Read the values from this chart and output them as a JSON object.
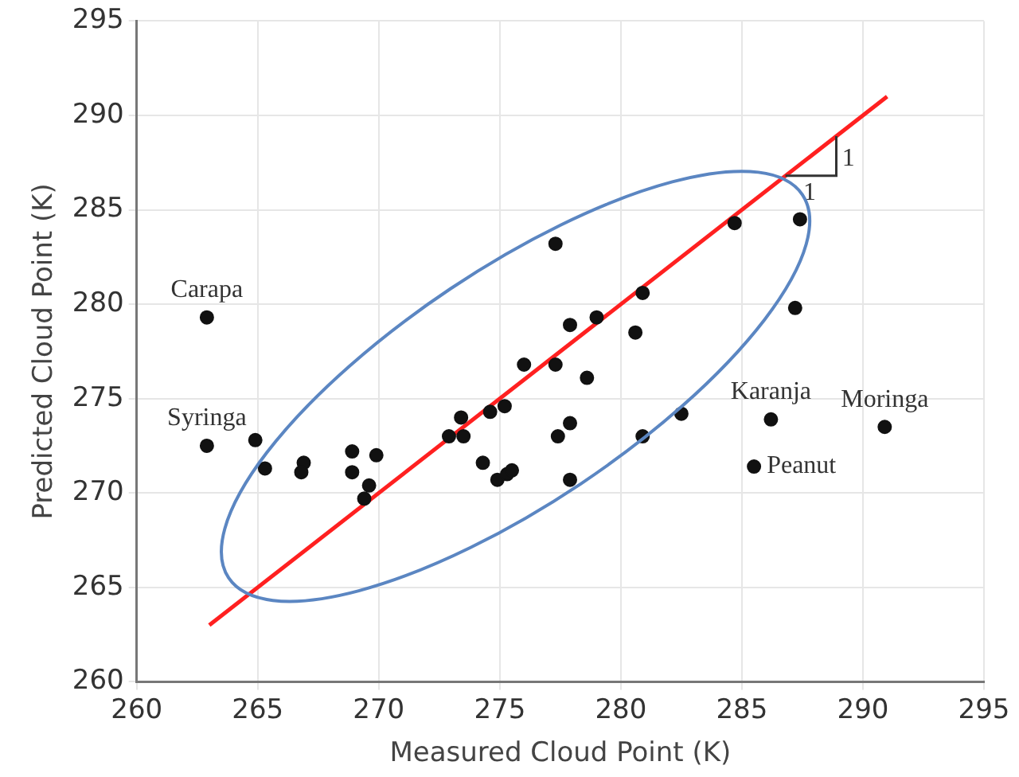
{
  "chart_data": {
    "type": "scatter",
    "xlabel": "Measured Cloud Point (K)",
    "ylabel": "Predicted Cloud Point (K)",
    "xlim": [
      260,
      295
    ],
    "xticks": [
      260,
      265,
      270,
      275,
      280,
      285,
      290,
      295
    ],
    "ylim": [
      260,
      295
    ],
    "yticks": [
      260,
      265,
      270,
      275,
      280,
      285,
      290,
      295
    ],
    "grid": true,
    "legend": false,
    "series": [
      {
        "marker": "circle",
        "color": "#111111",
        "x": [
          262.9,
          262.9,
          264.9,
          265.3,
          266.9,
          266.8,
          268.9,
          268.9,
          269.9,
          269.6,
          269.4,
          277.3,
          280.9,
          279.0,
          277.9,
          280.6,
          276.0,
          277.3,
          278.6,
          273.4,
          274.6,
          275.2,
          272.9,
          273.5,
          277.9,
          277.4,
          280.9,
          282.5,
          274.3,
          274.9,
          275.3,
          275.5,
          277.9,
          284.7,
          287.4,
          287.2,
          286.2,
          290.9,
          285.5
        ],
        "values": [
          279.3,
          272.5,
          272.8,
          271.3,
          271.6,
          271.1,
          272.2,
          271.1,
          272.0,
          270.4,
          269.7,
          283.2,
          280.6,
          279.3,
          278.9,
          278.5,
          276.8,
          276.8,
          276.1,
          274.0,
          274.3,
          274.6,
          273.0,
          273.0,
          273.7,
          273.0,
          273.0,
          274.2,
          271.6,
          270.7,
          271.0,
          271.2,
          270.7,
          284.3,
          284.5,
          279.8,
          273.9,
          273.5,
          271.4
        ]
      },
      {
        "type": "line",
        "color": "#ff2020",
        "x": [
          263,
          291
        ],
        "values": [
          263,
          291
        ]
      }
    ],
    "annotations": [
      {
        "text": "Carapa",
        "x": 262.9,
        "y": 279.3
      },
      {
        "text": "Syringa",
        "x": 262.9,
        "y": 272.5
      },
      {
        "text": "Karanja",
        "x": 286.2,
        "y": 273.9
      },
      {
        "text": "Moringa",
        "x": 290.9,
        "y": 273.5
      },
      {
        "text": "Peanut",
        "x": 285.5,
        "y": 271.4
      },
      "1",
      "1"
    ]
  }
}
